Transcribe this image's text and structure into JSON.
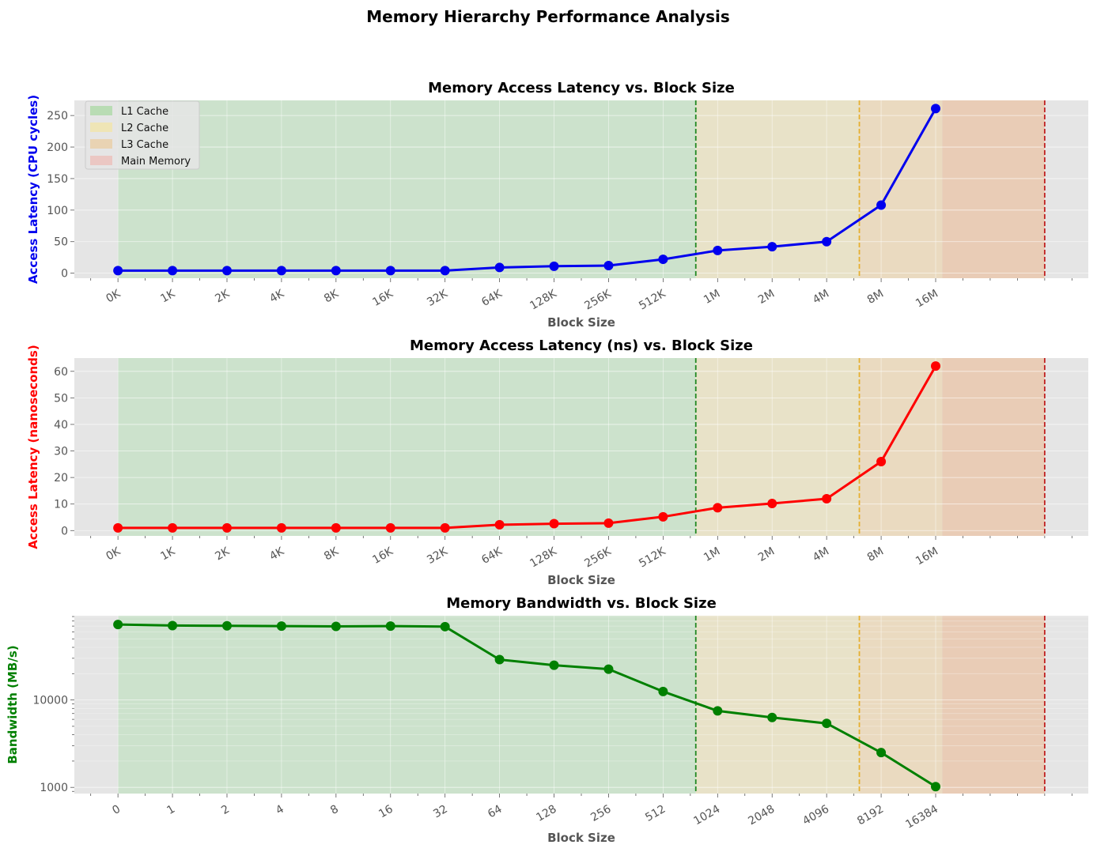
{
  "figure_title": "Memory Hierarchy Performance Analysis",
  "legend": {
    "placement": "top-left",
    "entries": [
      "L1 Cache",
      "L2 Cache",
      "L3 Cache",
      "Main Memory"
    ],
    "colors": [
      "#b9dcb4",
      "#efe5b6",
      "#e9d3b3",
      "#ebc7c3"
    ]
  },
  "colors": {
    "background": "#e5e5e5",
    "l1_band": "#cce2cc",
    "l2_band": "#e8e2c8",
    "l3_band": "#eadac0",
    "mem_band": "#e9ccb6",
    "l1_line": "#228822",
    "l2_line": "#e6b030",
    "mem_line": "#c02020",
    "series1": "#0000ee",
    "series2": "#ff0000",
    "series3": "#008000"
  },
  "chart_data": [
    {
      "type": "line",
      "title": "Memory Access Latency vs. Block Size",
      "xlabel": "Block Size",
      "ylabel": "Access Latency (CPU cycles)",
      "ylim": [
        -8,
        274
      ],
      "yticks": [
        0,
        50,
        100,
        150,
        200,
        250
      ],
      "x_tick_labels": [
        "0K",
        "1K",
        "2K",
        "4K",
        "8K",
        "16K",
        "32K",
        "64K",
        "128K",
        "256K",
        "512K",
        "1M",
        "2M",
        "4M",
        "8M",
        "16M"
      ],
      "cache_boundaries": {
        "L1": 10.6,
        "L2": 13.6,
        "Main Memory": 17.0
      },
      "grid": true,
      "series": [
        {
          "color": "#0000ee",
          "x": [
            0,
            1,
            2,
            3,
            4,
            5,
            6,
            7,
            8,
            9,
            10,
            11,
            12,
            13,
            14,
            15
          ],
          "values": [
            4,
            4,
            4,
            4,
            4,
            4,
            4,
            9,
            11,
            12,
            22,
            36,
            42,
            50,
            108,
            261
          ]
        }
      ]
    },
    {
      "type": "line",
      "title": "Memory Access Latency (ns) vs. Block Size",
      "xlabel": "Block Size",
      "ylabel": "Access Latency (nanoseconds)",
      "ylim": [
        -2,
        65
      ],
      "yticks": [
        0,
        10,
        20,
        30,
        40,
        50,
        60
      ],
      "x_tick_labels": [
        "0K",
        "1K",
        "2K",
        "4K",
        "8K",
        "16K",
        "32K",
        "64K",
        "128K",
        "256K",
        "512K",
        "1M",
        "2M",
        "4M",
        "8M",
        "16M"
      ],
      "cache_boundaries": {
        "L1": 10.6,
        "L2": 13.6,
        "Main Memory": 17.0
      },
      "grid": true,
      "series": [
        {
          "color": "#ff0000",
          "x": [
            0,
            1,
            2,
            3,
            4,
            5,
            6,
            7,
            8,
            9,
            10,
            11,
            12,
            13,
            14,
            15
          ],
          "values": [
            1.0,
            1.0,
            1.0,
            1.0,
            1.0,
            1.0,
            1.0,
            2.2,
            2.6,
            2.8,
            5.2,
            8.6,
            10.2,
            12.0,
            26.0,
            62.0
          ]
        }
      ]
    },
    {
      "type": "line",
      "title": "Memory Bandwidth vs. Block Size",
      "xlabel": "Block Size",
      "ylabel": "Bandwidth (MB/s)",
      "yscale": "log",
      "ylim": [
        850,
        92000
      ],
      "yticks": [
        1000,
        10000
      ],
      "ytick_labels": [
        "1000",
        "10000"
      ],
      "x_tick_labels": [
        "0",
        "1",
        "2",
        "4",
        "8",
        "16",
        "32",
        "64",
        "128",
        "256",
        "512",
        "1024",
        "2048",
        "4096",
        "8192",
        "16384"
      ],
      "cache_boundaries": {
        "L1": 10.6,
        "L2": 13.6,
        "Main Memory": 17.0
      },
      "grid": true,
      "series": [
        {
          "color": "#008000",
          "x": [
            0,
            1,
            2,
            3,
            4,
            5,
            6,
            7,
            8,
            9,
            10,
            11,
            12,
            13,
            14,
            15
          ],
          "values": [
            73000,
            71000,
            70500,
            70000,
            69500,
            70000,
            69000,
            29000,
            25000,
            22500,
            12500,
            7500,
            6300,
            5400,
            2500,
            1020
          ]
        }
      ]
    }
  ]
}
